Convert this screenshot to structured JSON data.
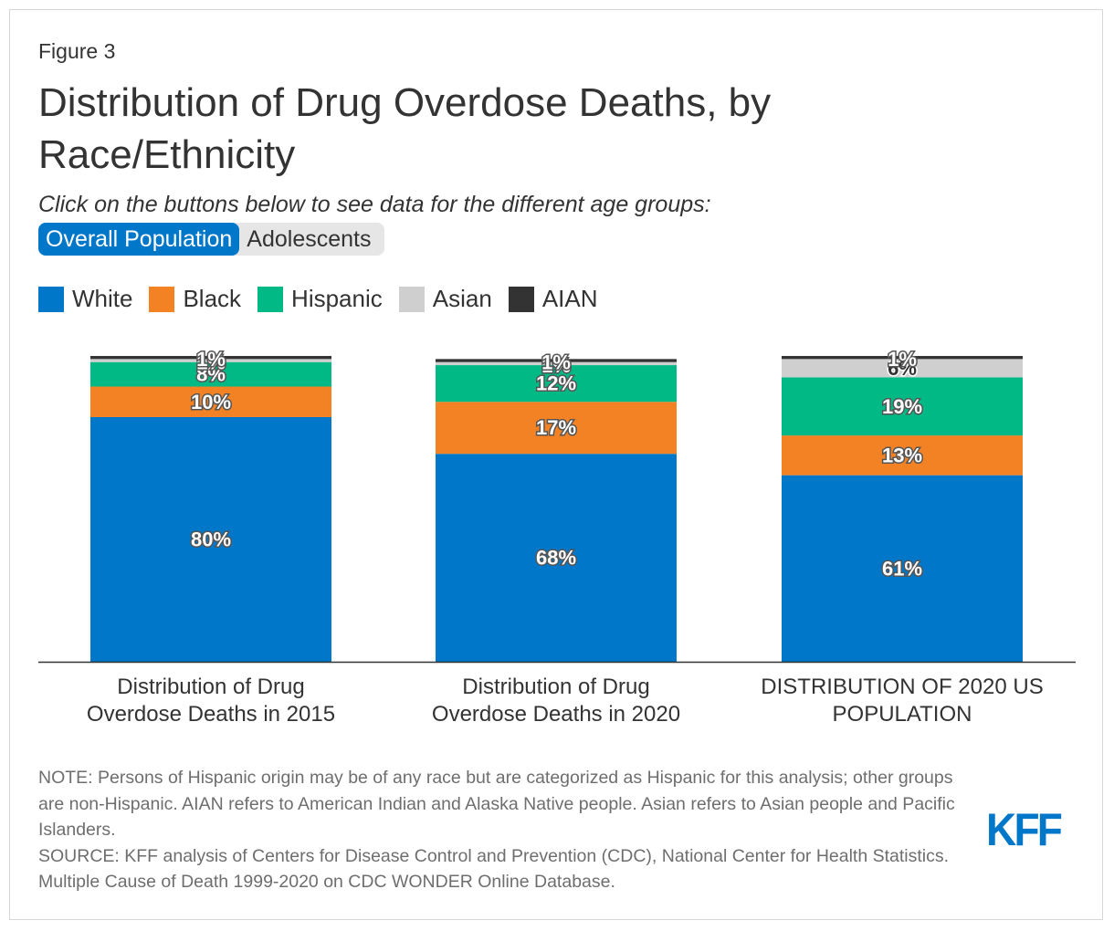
{
  "figure_label": "Figure 3",
  "title": "Distribution of Drug Overdose Deaths, by Race/Ethnicity",
  "subtitle": "Click on the buttons below to see data for the different age groups:",
  "buttons": {
    "overall": "Overall Population",
    "adolescents": "Adolescents"
  },
  "colors": {
    "white": "#0077c8",
    "black": "#f28223",
    "hispanic": "#00b984",
    "asian": "#cfcfcf",
    "aian": "#333333",
    "button_active": "#0077c8",
    "logo": "#0077c8"
  },
  "chart_data": {
    "type": "bar",
    "stacked": true,
    "categories": [
      "Distribution of Drug Overdose Deaths in 2015",
      "Distribution of Drug Overdose Deaths in 2020",
      "DISTRIBUTION OF 2020 US POPULATION"
    ],
    "series": [
      {
        "name": "White",
        "key": "white",
        "values": [
          80,
          68,
          61
        ]
      },
      {
        "name": "Black",
        "key": "black",
        "values": [
          10,
          17,
          13
        ]
      },
      {
        "name": "Hispanic",
        "key": "hispanic",
        "values": [
          8,
          12,
          19
        ]
      },
      {
        "name": "Asian",
        "key": "asian",
        "values": [
          1,
          1,
          6
        ]
      },
      {
        "name": "AIAN",
        "key": "aian",
        "values": [
          1,
          1,
          1
        ]
      }
    ],
    "data_labels": [
      [
        "80%",
        "10%",
        "8%",
        "1%",
        "1%"
      ],
      [
        "68%",
        "17%",
        "12%",
        "1%",
        "1%"
      ],
      [
        "61%",
        "13%",
        "19%",
        "6%",
        "1%"
      ]
    ],
    "ylim": [
      0,
      100
    ],
    "legend_position": "top-left"
  },
  "notes": {
    "note": "NOTE: Persons of Hispanic origin may be of any race but are categorized as Hispanic for this analysis; other groups are non-Hispanic. AIAN refers to American Indian and Alaska Native people. Asian refers to Asian people and Pacific Islanders.",
    "source": "SOURCE: KFF analysis of Centers for Disease Control and Prevention (CDC), National Center for Health Statistics. Multiple Cause of Death 1999-2020 on CDC WONDER Online Database."
  },
  "logo": "KFF"
}
